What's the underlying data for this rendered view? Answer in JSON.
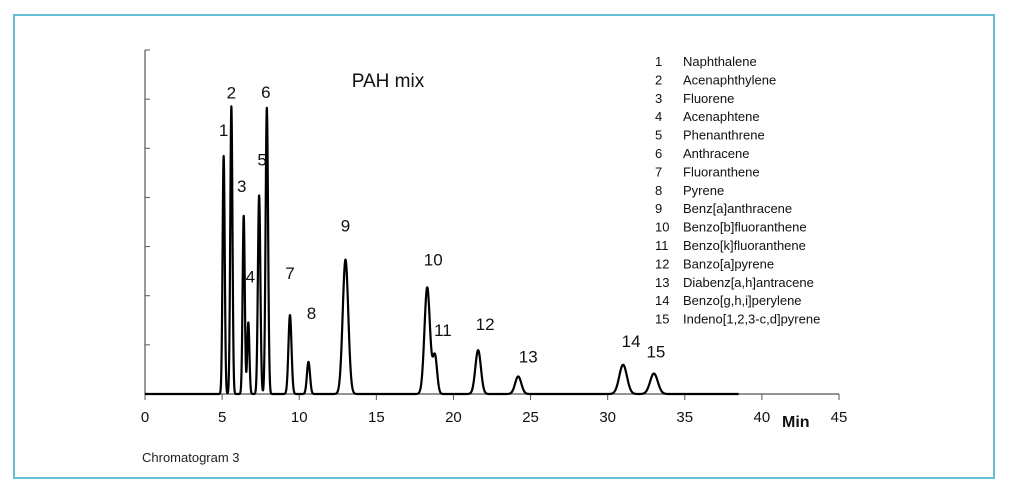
{
  "caption": "Chromatogram 3",
  "chart_data": {
    "type": "line",
    "title": "PAH mix",
    "xlabel": "Min",
    "ylabel": "",
    "xlim": [
      0,
      45
    ],
    "ylim": [
      0,
      1
    ],
    "x_ticks": [
      0,
      5,
      10,
      15,
      20,
      25,
      30,
      35,
      40,
      45
    ],
    "y_tick_count": 7,
    "trace_end": 38.5,
    "grid": false,
    "line_color": "#000000",
    "peaks": [
      {
        "label": "1",
        "rt": 5.1,
        "height": 0.815,
        "width": 0.07
      },
      {
        "label": "2",
        "rt": 5.6,
        "height": 0.985,
        "width": 0.07
      },
      {
        "label": "3",
        "rt": 6.4,
        "height": 0.61,
        "width": 0.07
      },
      {
        "label": "4",
        "rt": 6.7,
        "height": 0.245,
        "width": 0.07
      },
      {
        "label": "5",
        "rt": 7.4,
        "height": 0.68,
        "width": 0.08
      },
      {
        "label": "6",
        "rt": 7.9,
        "height": 0.98,
        "width": 0.08
      },
      {
        "label": "7",
        "rt": 9.4,
        "height": 0.27,
        "width": 0.1
      },
      {
        "label": "8",
        "rt": 10.6,
        "height": 0.11,
        "width": 0.1
      },
      {
        "label": "9",
        "rt": 13.0,
        "height": 0.46,
        "width": 0.18
      },
      {
        "label": "10",
        "rt": 18.3,
        "height": 0.365,
        "width": 0.18
      },
      {
        "label": "11",
        "rt": 18.8,
        "height": 0.13,
        "width": 0.14
      },
      {
        "label": "12",
        "rt": 21.6,
        "height": 0.15,
        "width": 0.18
      },
      {
        "label": "13",
        "rt": 24.2,
        "height": 0.06,
        "width": 0.2
      },
      {
        "label": "14",
        "rt": 31.0,
        "height": 0.1,
        "width": 0.25
      },
      {
        "label": "15",
        "rt": 33.0,
        "height": 0.07,
        "width": 0.25
      }
    ],
    "legend": [
      {
        "num": "1",
        "name": "Naphthalene"
      },
      {
        "num": "2",
        "name": "Acenaphthylene"
      },
      {
        "num": "3",
        "name": "Fluorene"
      },
      {
        "num": "4",
        "name": "Acenaphtene"
      },
      {
        "num": "5",
        "name": "Phenanthrene"
      },
      {
        "num": "6",
        "name": "Anthracene"
      },
      {
        "num": "7",
        "name": "Fluoranthene"
      },
      {
        "num": "8",
        "name": "Pyrene"
      },
      {
        "num": "9",
        "name": "Benz[a]anthracene"
      },
      {
        "num": "10",
        "name": "Benzo[b]fluoranthene"
      },
      {
        "num": "11",
        "name": "Benzo[k]fluoranthene"
      },
      {
        "num": "12",
        "name": "Banzo[a]pyrene"
      },
      {
        "num": "13",
        "name": "Diabenz[a,h]antracene"
      },
      {
        "num": "14",
        "name": "Benzo[g,h,i]perylene"
      },
      {
        "num": "15",
        "name": "Indeno[1,2,3-c,d]pyrene"
      }
    ],
    "legend_position": "top-right"
  }
}
